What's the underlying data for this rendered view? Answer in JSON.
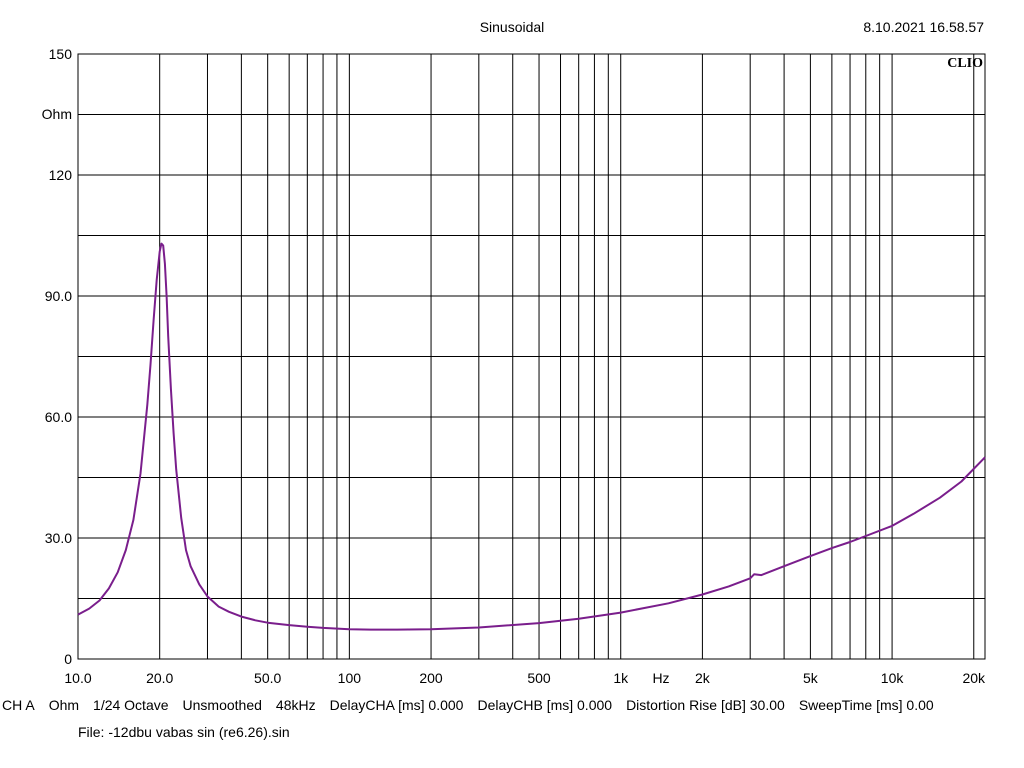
{
  "header": {
    "title": "Sinusoidal",
    "timestamp": "8.10.2021 16.58.57",
    "brand": "CLIO"
  },
  "chart_data": {
    "type": "line",
    "title": "Sinusoidal",
    "xlabel": "Hz",
    "ylabel": "Ohm",
    "x_scale": "log",
    "xlim": [
      10,
      22000
    ],
    "ylim": [
      0,
      150
    ],
    "grid": true,
    "x_ticks": [
      {
        "value": 10,
        "label": "10.0"
      },
      {
        "value": 20,
        "label": "20.0"
      },
      {
        "value": 50,
        "label": "50.0"
      },
      {
        "value": 100,
        "label": "100"
      },
      {
        "value": 200,
        "label": "200"
      },
      {
        "value": 500,
        "label": "500"
      },
      {
        "value": 1000,
        "label": "1k"
      },
      {
        "value": 2000,
        "label": "2k"
      },
      {
        "value": 5000,
        "label": "5k"
      },
      {
        "value": 10000,
        "label": "10k"
      },
      {
        "value": 20000,
        "label": "20k"
      }
    ],
    "y_ticks": [
      {
        "value": 150,
        "label": "150"
      },
      {
        "value": 120,
        "label": "120"
      },
      {
        "value": 90,
        "label": "90.0"
      },
      {
        "value": 60,
        "label": "60.0"
      },
      {
        "value": 30,
        "label": "30.0"
      },
      {
        "value": 0,
        "label": "0"
      }
    ],
    "series": [
      {
        "color": "#7a1e8c",
        "x": [
          10,
          11,
          12,
          13,
          14,
          15,
          16,
          17,
          18,
          18.5,
          19,
          19.5,
          20,
          20.3,
          20.6,
          20.9,
          21.2,
          21.5,
          22,
          22.5,
          23,
          24,
          25,
          26,
          28,
          30,
          33,
          36,
          40,
          45,
          50,
          60,
          70,
          80,
          100,
          120,
          150,
          200,
          300,
          500,
          700,
          1000,
          1500,
          2000,
          2500,
          3000,
          3100,
          3300,
          3500,
          4000,
          5000,
          6000,
          7000,
          8000,
          10000,
          12000,
          15000,
          18000,
          22000
        ],
        "y": [
          11,
          12.5,
          14.5,
          17.5,
          21.5,
          27,
          34.5,
          46,
          63,
          73,
          84,
          94,
          101,
          103,
          102.5,
          98,
          90,
          80,
          67,
          56,
          47,
          35,
          27,
          23,
          18.5,
          15.5,
          13,
          11.7,
          10.5,
          9.6,
          9,
          8.4,
          8,
          7.7,
          7.4,
          7.3,
          7.3,
          7.4,
          7.8,
          8.9,
          10,
          11.5,
          13.8,
          16,
          18,
          20,
          21,
          20.8,
          21.5,
          23,
          25.5,
          27.5,
          29,
          30.5,
          33,
          36,
          40,
          44,
          50
        ]
      }
    ]
  },
  "status_bar": {
    "items": [
      "CH A",
      "Ohm",
      "1/24 Octave",
      "Unsmoothed",
      "48kHz",
      "DelayCHA [ms] 0.000",
      "DelayCHB [ms] 0.000",
      "Distortion Rise [dB] 30.00",
      "SweepTime [ms] 0.00"
    ],
    "file": "File: -12dbu vabas sin (re6.26).sin"
  }
}
